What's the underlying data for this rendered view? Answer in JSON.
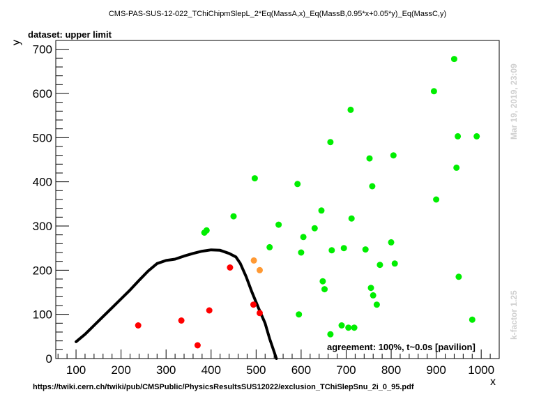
{
  "chart_data": {
    "type": "scatter",
    "title": "CMS-PAS-SUS-12-022_TChiChipmSlepL_2*Eq(MassA,x)_Eq(MassB,0.95*x+0.05*y)_Eq(MassC,y)",
    "dataset_label": "dataset: upper limit",
    "xlabel": "x",
    "ylabel": "y",
    "xlim": [
      55,
      1040
    ],
    "ylim": [
      0,
      720
    ],
    "xticks": [
      100,
      200,
      300,
      400,
      500,
      600,
      700,
      800,
      900,
      1000
    ],
    "yticks": [
      0,
      100,
      200,
      300,
      400,
      500,
      600,
      700
    ],
    "annotation": "agreement: 100%, t~0.0s [pavilion]",
    "side_date": "Mar 19, 2019, 23:09",
    "side_kfactor": "k-factor 1.25",
    "footer_url": "https://twiki.cern.ch/twiki/pub/CMSPublic/PhysicsResultsSUS12022/exclusion_TChiSlepSnu_2i_0_95.pdf",
    "colors": {
      "green": "#00ee00",
      "red": "#ff0000",
      "orange": "#ff9933",
      "curve": "#000000"
    },
    "series": [
      {
        "color": "green",
        "points": [
          [
            385,
            285
          ],
          [
            390,
            290
          ],
          [
            450,
            322
          ],
          [
            497,
            408
          ],
          [
            530,
            252
          ],
          [
            550,
            303
          ],
          [
            592,
            395
          ],
          [
            595,
            100
          ],
          [
            600,
            240
          ],
          [
            605,
            275
          ],
          [
            630,
            295
          ],
          [
            645,
            335
          ],
          [
            648,
            175
          ],
          [
            652,
            157
          ],
          [
            665,
            490
          ],
          [
            665,
            55
          ],
          [
            668,
            245
          ],
          [
            690,
            75
          ],
          [
            695,
            250
          ],
          [
            705,
            70
          ],
          [
            710,
            563
          ],
          [
            712,
            317
          ],
          [
            718,
            70
          ],
          [
            743,
            247
          ],
          [
            752,
            453
          ],
          [
            755,
            160
          ],
          [
            758,
            390
          ],
          [
            760,
            143
          ],
          [
            768,
            122
          ],
          [
            775,
            212
          ],
          [
            800,
            263
          ],
          [
            805,
            460
          ],
          [
            808,
            215
          ],
          [
            895,
            605
          ],
          [
            900,
            360
          ],
          [
            940,
            678
          ],
          [
            945,
            432
          ],
          [
            948,
            503
          ],
          [
            950,
            185
          ],
          [
            980,
            88
          ],
          [
            990,
            503
          ]
        ]
      },
      {
        "color": "red",
        "points": [
          [
            238,
            75
          ],
          [
            334,
            86
          ],
          [
            370,
            30
          ],
          [
            396,
            109
          ],
          [
            442,
            206
          ],
          [
            494,
            122
          ],
          [
            508,
            103
          ]
        ]
      },
      {
        "color": "orange",
        "points": [
          [
            495,
            222
          ],
          [
            508,
            200
          ]
        ]
      }
    ],
    "exclusion_curve": [
      [
        100,
        38
      ],
      [
        120,
        55
      ],
      [
        140,
        75
      ],
      [
        160,
        95
      ],
      [
        180,
        115
      ],
      [
        200,
        135
      ],
      [
        220,
        155
      ],
      [
        240,
        177
      ],
      [
        260,
        198
      ],
      [
        280,
        215
      ],
      [
        300,
        222
      ],
      [
        320,
        225
      ],
      [
        340,
        232
      ],
      [
        360,
        238
      ],
      [
        380,
        243
      ],
      [
        400,
        246
      ],
      [
        420,
        245
      ],
      [
        440,
        238
      ],
      [
        455,
        230
      ],
      [
        465,
        215
      ],
      [
        478,
        185
      ],
      [
        490,
        152
      ],
      [
        505,
        115
      ],
      [
        520,
        80
      ],
      [
        530,
        45
      ],
      [
        540,
        15
      ],
      [
        545,
        0
      ]
    ]
  }
}
